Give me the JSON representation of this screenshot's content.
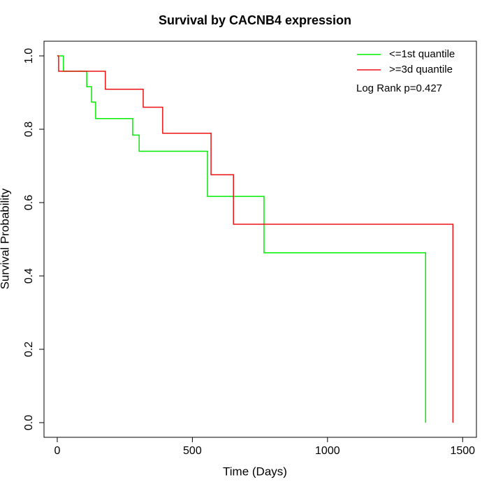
{
  "chart_data": {
    "type": "step",
    "title": "Survival by CACNB4 expression",
    "x_label": "Time (Days)",
    "y_label": "Survival Probability",
    "annotation": "Log Rank p=0.427",
    "legend_position": "top-right",
    "xlim": [
      -49,
      1551
    ],
    "ylim": [
      -0.04,
      1.04
    ],
    "xticks": [
      0,
      500,
      1000,
      1500
    ],
    "yticks": [
      {
        "value": 0,
        "label": "0.0"
      },
      0.2,
      0.4,
      0.6,
      0.8,
      {
        "value": 1,
        "label": "1.0"
      }
    ],
    "series": [
      {
        "name": "<=1st quantile",
        "color": "#00ee00",
        "x": [
          0,
          23,
          109,
          127,
          142,
          279,
          303,
          556,
          765,
          1363
        ],
        "values": [
          1.0,
          0.958,
          0.916,
          0.874,
          0.829,
          0.784,
          0.74,
          0.617,
          0.463,
          0.0
        ]
      },
      {
        "name": ">=3d quantile",
        "color": "#ee1111",
        "x": [
          0,
          5,
          178,
          318,
          390,
          569,
          652,
          1464
        ],
        "values": [
          1.0,
          0.958,
          0.909,
          0.86,
          0.789,
          0.676,
          0.541,
          0.0
        ]
      }
    ]
  }
}
